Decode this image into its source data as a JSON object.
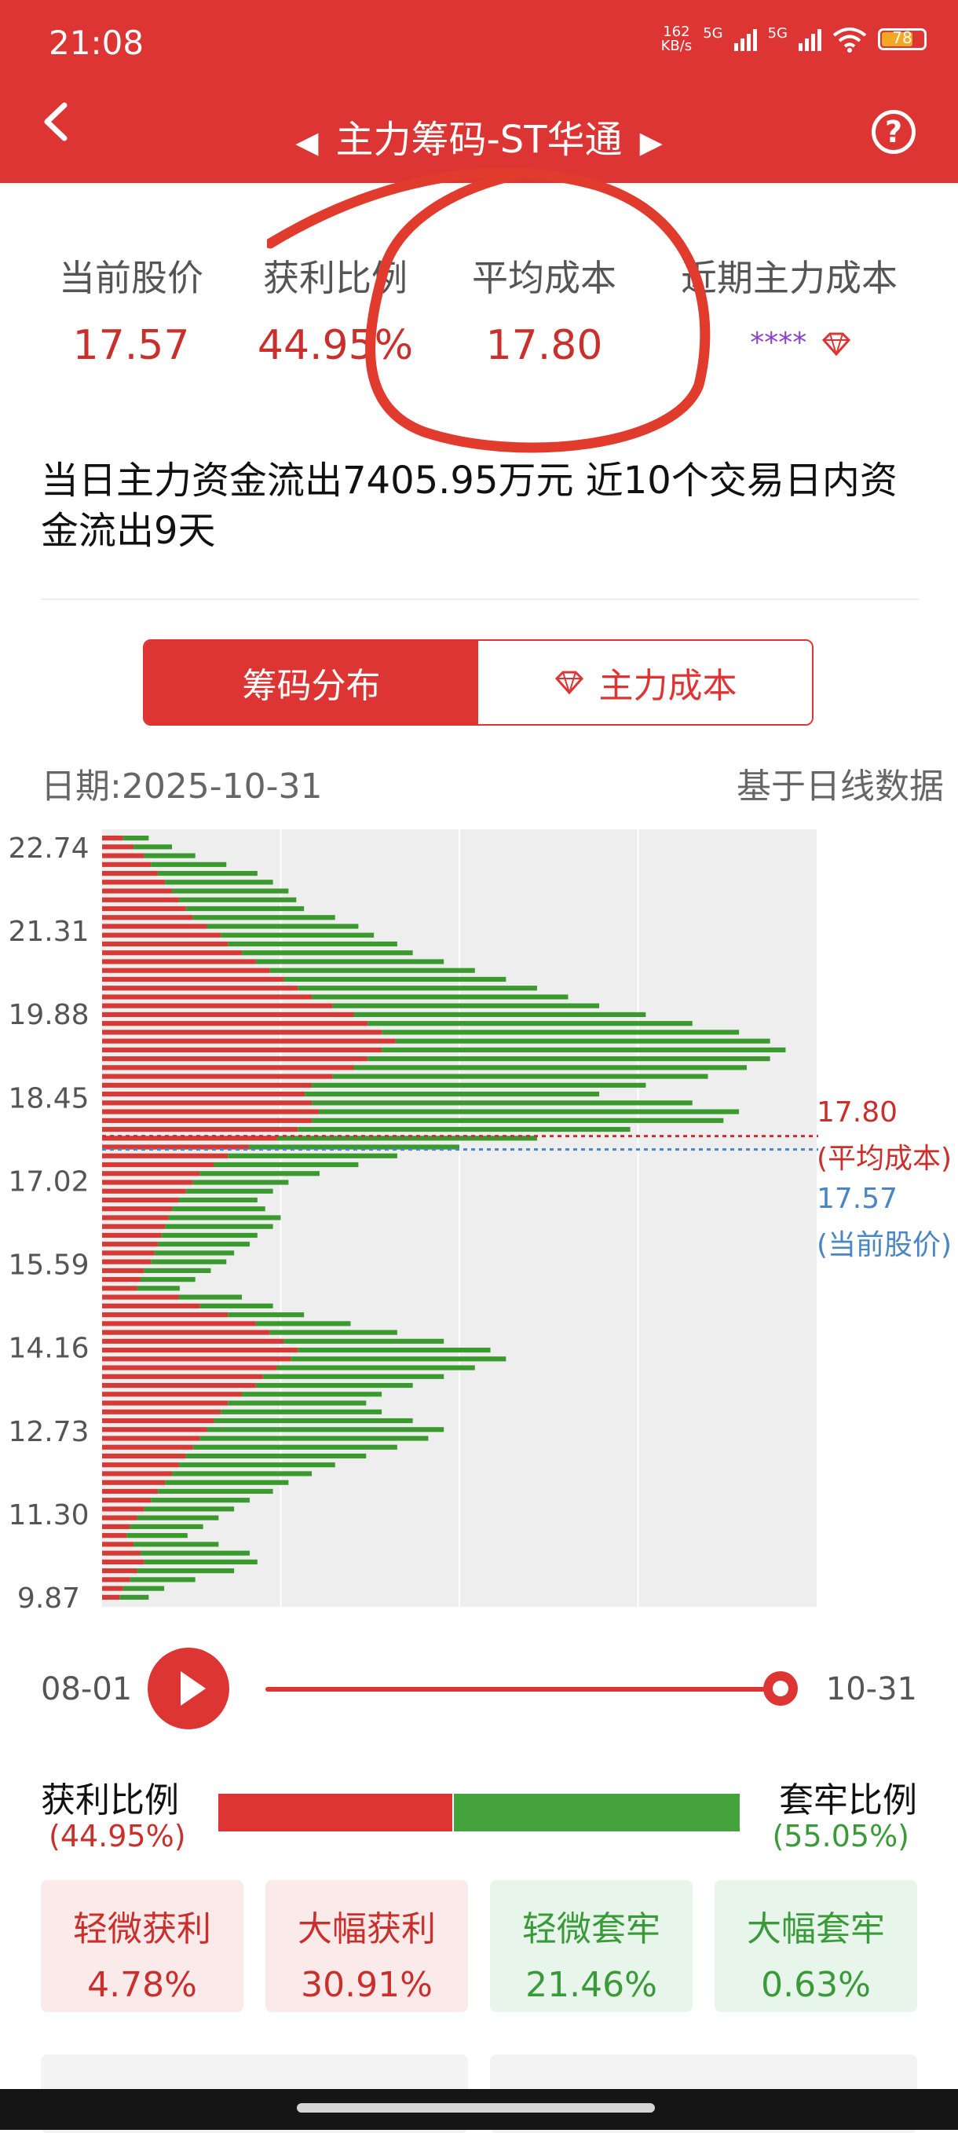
{
  "status_bar": {
    "time": "21:08",
    "net_speed": "162\nKB/s",
    "net1": "5G",
    "net2": "5G",
    "battery": "78"
  },
  "header": {
    "title": "主力筹码-ST华通"
  },
  "stats": [
    {
      "label": "当前股价",
      "value": "17.57"
    },
    {
      "label": "获利比例",
      "value": "44.95%"
    },
    {
      "label": "平均成本",
      "value": "17.80"
    },
    {
      "label": "近期主力成本",
      "value": "****"
    }
  ],
  "summary": "当日主力资金流出7405.95万元 近10个交易日内资金流出9天",
  "tabs": {
    "active": "筹码分布",
    "inactive": "主力成本"
  },
  "date_label": "日期:2025-10-31",
  "basis_label": "基于日线数据",
  "chart_data": {
    "type": "horizontal-bar-distribution",
    "y_ticks": [
      "22.74",
      "21.31",
      "19.88",
      "18.45",
      "17.02",
      "15.59",
      "14.16",
      "12.73",
      "11.30",
      "9.87"
    ],
    "ylim": [
      9.87,
      22.74
    ],
    "series_colors": {
      "profit": "#d63a36",
      "trapped": "#3a9a2e"
    },
    "avg_cost": {
      "value": "17.80",
      "label": "(平均成本)"
    },
    "current_price": {
      "value": "17.57",
      "label": "(当前股价)"
    }
  },
  "timeline": {
    "start": "08-01",
    "end": "10-31",
    "progress": 1.0
  },
  "ratio": {
    "profit_label": "获利比例",
    "profit_pct": "(44.95%)",
    "profit_value": 44.95,
    "trap_label": "套牢比例",
    "trap_pct": "(55.05%)"
  },
  "boxes": [
    {
      "label": "轻微获利",
      "value": "4.78%"
    },
    {
      "label": "大幅获利",
      "value": "30.91%"
    },
    {
      "label": "轻微套牢",
      "value": "21.46%"
    },
    {
      "label": "大幅套牢",
      "value": "0.63%"
    }
  ]
}
